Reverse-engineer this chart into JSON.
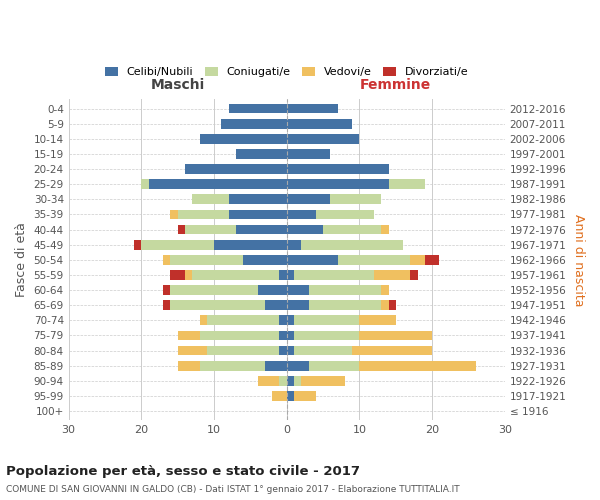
{
  "age_groups": [
    "100+",
    "95-99",
    "90-94",
    "85-89",
    "80-84",
    "75-79",
    "70-74",
    "65-69",
    "60-64",
    "55-59",
    "50-54",
    "45-49",
    "40-44",
    "35-39",
    "30-34",
    "25-29",
    "20-24",
    "15-19",
    "10-14",
    "5-9",
    "0-4"
  ],
  "birth_years": [
    "≤ 1916",
    "1917-1921",
    "1922-1926",
    "1927-1931",
    "1932-1936",
    "1937-1941",
    "1942-1946",
    "1947-1951",
    "1952-1956",
    "1957-1961",
    "1962-1966",
    "1967-1971",
    "1972-1976",
    "1977-1981",
    "1982-1986",
    "1987-1991",
    "1992-1996",
    "1997-2001",
    "2002-2006",
    "2007-2011",
    "2012-2016"
  ],
  "maschi": {
    "celibi": [
      0,
      0,
      0,
      3,
      1,
      1,
      1,
      3,
      4,
      1,
      6,
      10,
      7,
      8,
      8,
      19,
      14,
      7,
      12,
      9,
      8
    ],
    "coniugati": [
      0,
      0,
      1,
      9,
      10,
      11,
      10,
      13,
      12,
      12,
      10,
      10,
      7,
      7,
      5,
      1,
      0,
      0,
      0,
      0,
      0
    ],
    "vedovi": [
      0,
      2,
      3,
      3,
      4,
      3,
      1,
      0,
      0,
      1,
      1,
      0,
      0,
      1,
      0,
      0,
      0,
      0,
      0,
      0,
      0
    ],
    "divorziati": [
      0,
      0,
      0,
      0,
      0,
      0,
      0,
      1,
      1,
      2,
      0,
      1,
      1,
      0,
      0,
      0,
      0,
      0,
      0,
      0,
      0
    ]
  },
  "femmine": {
    "nubili": [
      0,
      1,
      1,
      3,
      1,
      1,
      1,
      3,
      3,
      1,
      7,
      2,
      5,
      4,
      6,
      14,
      14,
      6,
      10,
      9,
      7
    ],
    "coniugate": [
      0,
      0,
      1,
      7,
      8,
      9,
      9,
      10,
      10,
      11,
      10,
      14,
      8,
      8,
      7,
      5,
      0,
      0,
      0,
      0,
      0
    ],
    "vedove": [
      0,
      3,
      6,
      16,
      11,
      10,
      5,
      1,
      1,
      5,
      2,
      0,
      1,
      0,
      0,
      0,
      0,
      0,
      0,
      0,
      0
    ],
    "divorziate": [
      0,
      0,
      0,
      0,
      0,
      0,
      0,
      1,
      0,
      1,
      2,
      0,
      0,
      0,
      0,
      0,
      0,
      0,
      0,
      0,
      0
    ]
  },
  "colors": {
    "celibi": "#4472a4",
    "coniugati": "#c5d9a0",
    "vedovi": "#f0c060",
    "divorziati": "#c0302a"
  },
  "title": "Popolazione per età, sesso e stato civile - 2017",
  "subtitle": "COMUNE DI SAN GIOVANNI IN GALDO (CB) - Dati ISTAT 1° gennaio 2017 - Elaborazione TUTTITALIA.IT",
  "xlim": 30,
  "ylabel_left": "Fasce di età",
  "ylabel_right": "Anni di nascita",
  "legend_labels": [
    "Celibi/Nubili",
    "Coniugati/e",
    "Vedovi/e",
    "Divorziati/e"
  ],
  "maschi_label": "Maschi",
  "femmine_label": "Femmine"
}
